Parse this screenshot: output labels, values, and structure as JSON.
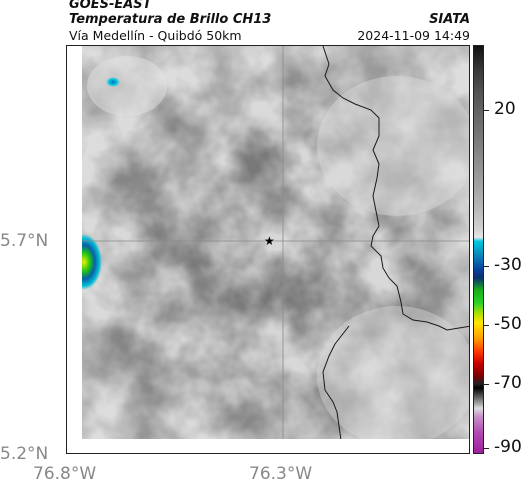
{
  "header": {
    "satellite": "GOES-EAST",
    "product": "Temperatura de Brillo CH13",
    "region": "Vía Medellín - Quibdó 50km",
    "organization": "SIATA",
    "timestamp": "2024-11-09 14:49"
  },
  "axes": {
    "lat_ticks": [
      "5.7°N",
      "5.2°N"
    ],
    "lon_ticks": [
      "76.8°W",
      "76.3°W"
    ]
  },
  "colorbar": {
    "ticks": [
      "20",
      "-30",
      "-50",
      "-70",
      "-90"
    ]
  },
  "marker": {
    "symbol": "★"
  }
}
